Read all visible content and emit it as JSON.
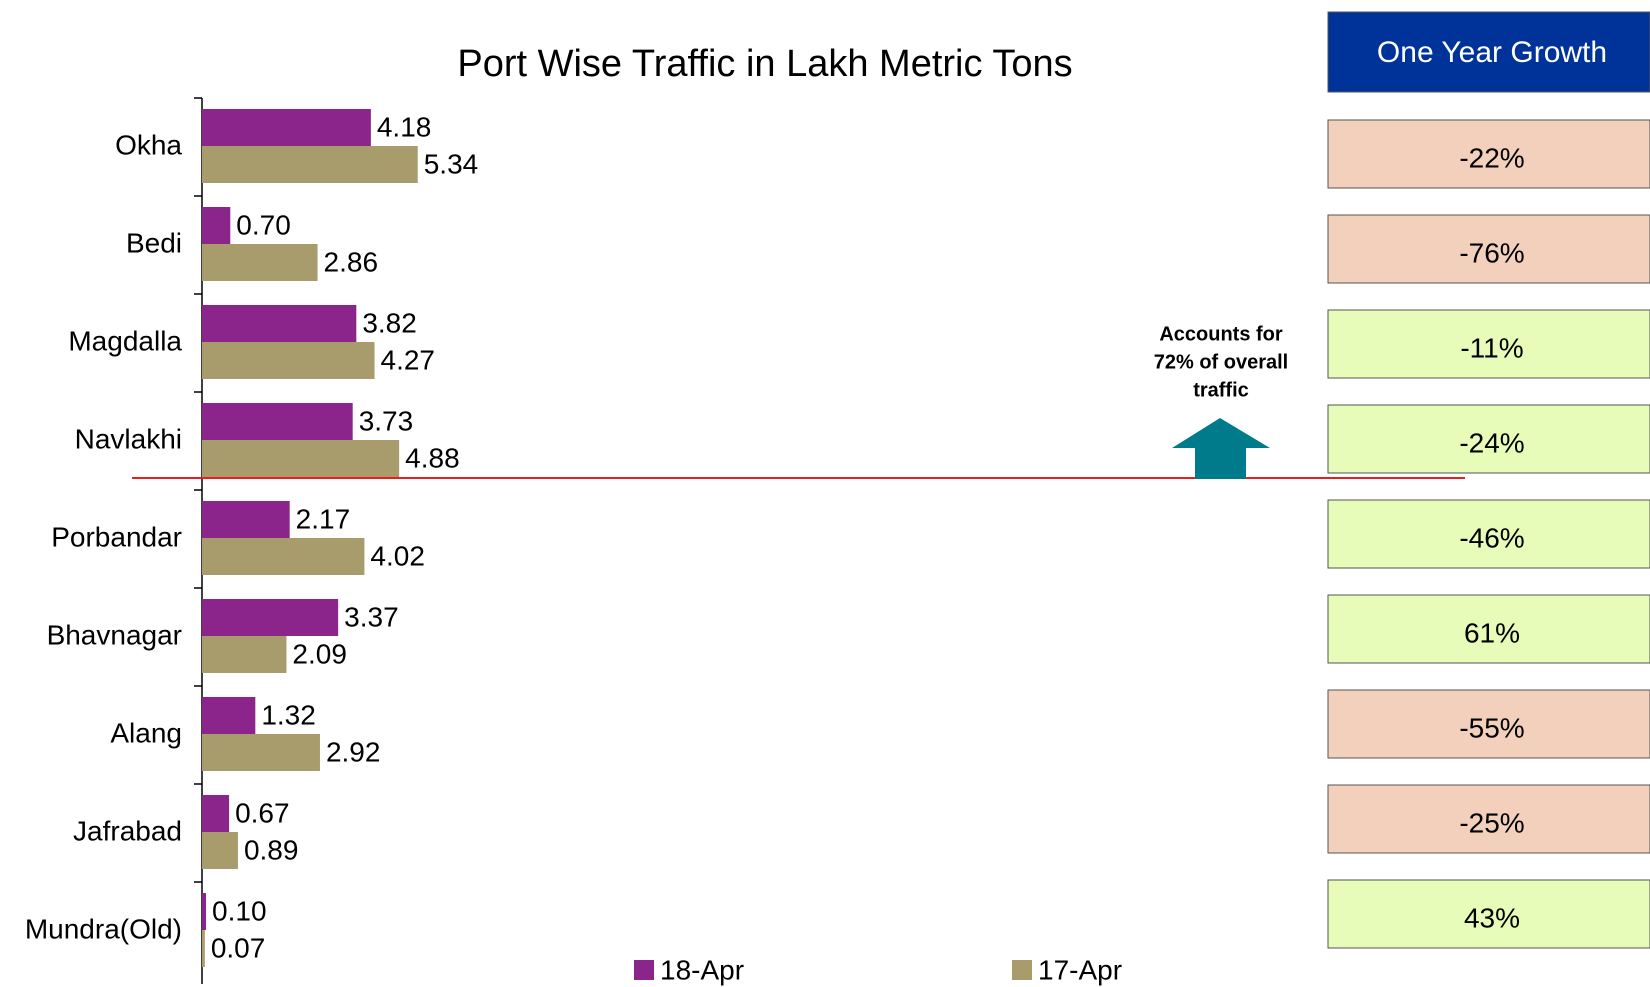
{
  "chart_data": {
    "type": "barh",
    "title": "Port Wise Traffic in Lakh Metric Tons",
    "categories": [
      "Okha",
      "Bedi",
      "Magdalla",
      "Navlakhi",
      "Porbandar",
      "Bhavnagar",
      "Alang",
      "Jafrabad",
      "Mundra(Old)"
    ],
    "series": [
      {
        "name": "18-Apr",
        "color": "#8b258b",
        "values": [
          4.18,
          0.7,
          3.82,
          3.73,
          2.17,
          3.37,
          1.32,
          0.67,
          0.1
        ],
        "value_labels": [
          "4.18",
          "0.70",
          "3.82",
          "3.73",
          "2.17",
          "3.37",
          "1.32",
          "0.67",
          "0.10"
        ]
      },
      {
        "name": "17-Apr",
        "color": "#a89c6c",
        "values": [
          5.34,
          2.86,
          4.27,
          4.88,
          4.02,
          2.09,
          2.92,
          0.89,
          0.07
        ],
        "value_labels": [
          "5.34",
          "2.86",
          "4.27",
          "4.88",
          "4.02",
          "2.09",
          "2.92",
          "0.89",
          "0.07"
        ]
      }
    ],
    "annotation": [
      "Accounts for",
      "72% of overall",
      "traffic"
    ]
  },
  "growth_table": {
    "title": "One Year Growth",
    "cells": [
      "-22%",
      "-76%",
      "-11%",
      "-24%",
      "-46%",
      "61%",
      "-55%",
      "-25%",
      "43%"
    ],
    "colors": [
      "#f2d0bc",
      "#f2d0bc",
      "#e6fcb8",
      "#e6fcb8",
      "#e6fcb8",
      "#e6fcb8",
      "#f2d0bc",
      "#f2d0bc",
      "#e6fcb8"
    ]
  }
}
